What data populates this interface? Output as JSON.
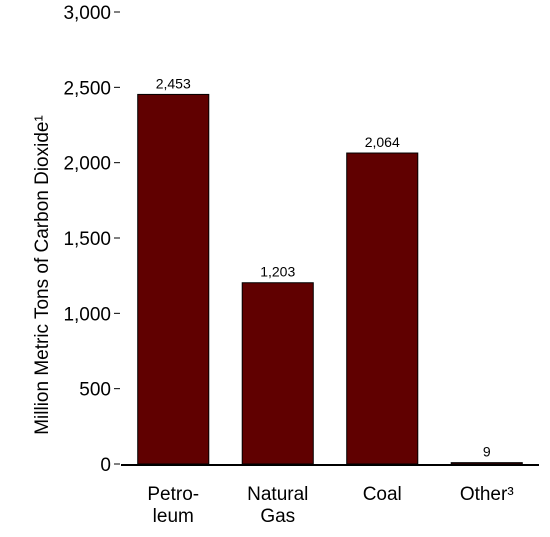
{
  "chart_data": {
    "type": "bar",
    "title": "",
    "xlabel": "",
    "ylabel": "Million Metric Tons of Carbon Dioxide¹",
    "ylim": [
      0,
      3000
    ],
    "yticks": [
      0,
      500,
      1000,
      1500,
      2000,
      2500,
      3000
    ],
    "ytick_labels": [
      "0",
      "500",
      "1,000",
      "1,500",
      "2,000",
      "2,500",
      "3,000"
    ],
    "categories": [
      [
        "Petro-",
        "leum"
      ],
      [
        "Natural",
        "Gas"
      ],
      [
        "Coal"
      ],
      [
        "Other³"
      ]
    ],
    "values": [
      2453,
      1203,
      2064,
      9
    ],
    "value_labels": [
      "2,453",
      "1,203",
      "2,064",
      "9"
    ],
    "bar_color": "#600000",
    "grid": false
  }
}
